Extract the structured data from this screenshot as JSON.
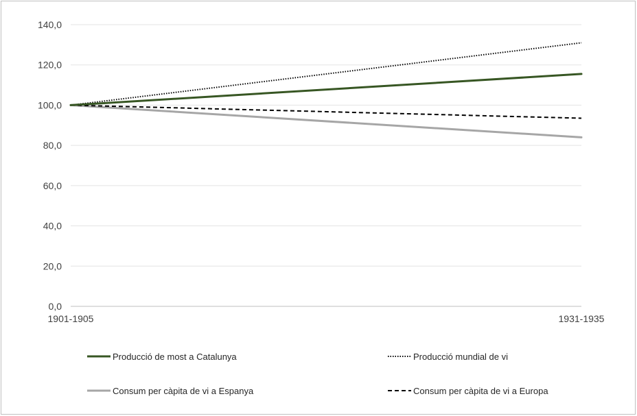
{
  "chart_data": {
    "type": "line",
    "title": "",
    "xlabel": "",
    "ylabel": "",
    "categories": [
      "1901-1905",
      "1931-1935"
    ],
    "ylim": [
      0,
      140
    ],
    "yticks": [
      "0,0",
      "20,0",
      "40,0",
      "60,0",
      "80,0",
      "100,0",
      "120,0",
      "140,0"
    ],
    "ytick_values": [
      0,
      20,
      40,
      60,
      80,
      100,
      120,
      140
    ],
    "grid": true,
    "legend_position": "bottom",
    "series": [
      {
        "name": "Producció de most a Catalunya",
        "values": [
          100.0,
          115.5
        ],
        "color": "#375623",
        "dash": "solid"
      },
      {
        "name": "Producció mundial de vi",
        "values": [
          100.0,
          131.0
        ],
        "color": "#000000",
        "dash": "dotted"
      },
      {
        "name": "Consum per càpita de vi a Espanya",
        "values": [
          100.0,
          84.0
        ],
        "color": "#a6a6a6",
        "dash": "solid"
      },
      {
        "name": "Consum per càpita de vi a Europa",
        "values": [
          100.0,
          93.5
        ],
        "color": "#000000",
        "dash": "dashed"
      }
    ]
  }
}
